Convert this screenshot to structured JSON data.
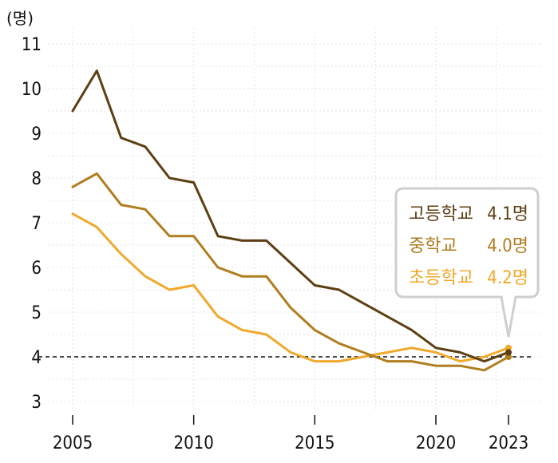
{
  "chart_data": {
    "type": "line",
    "ylabel": "(명)",
    "x": [
      2005,
      2006,
      2007,
      2008,
      2009,
      2010,
      2011,
      2012,
      2013,
      2014,
      2015,
      2016,
      2017,
      2018,
      2019,
      2020,
      2021,
      2022,
      2023
    ],
    "xticks": [
      "2005",
      "2010",
      "2015",
      "2020",
      "2023"
    ],
    "yticks": [
      "3",
      "4",
      "5",
      "6",
      "7",
      "8",
      "9",
      "10",
      "11"
    ],
    "ylim": [
      3,
      11
    ],
    "grid": true,
    "reference_line": 4,
    "series": [
      {
        "name": "고등학교",
        "color": "#5c3f12",
        "values": [
          9.5,
          10.4,
          8.9,
          8.7,
          8.0,
          7.9,
          6.7,
          6.6,
          6.6,
          6.1,
          5.6,
          5.5,
          5.2,
          4.9,
          4.6,
          4.2,
          4.1,
          3.9,
          4.1
        ],
        "latest_label": "4.1명"
      },
      {
        "name": "중학교",
        "color": "#b07d1f",
        "values": [
          7.8,
          8.1,
          7.4,
          7.3,
          6.7,
          6.7,
          6.0,
          5.8,
          5.8,
          5.1,
          4.6,
          4.3,
          4.1,
          3.9,
          3.9,
          3.8,
          3.8,
          3.7,
          4.0
        ],
        "latest_label": "4.0명"
      },
      {
        "name": "초등학교",
        "color": "#f0a92b",
        "values": [
          7.2,
          6.9,
          6.3,
          5.8,
          5.5,
          5.6,
          4.9,
          4.6,
          4.5,
          4.1,
          3.9,
          3.9,
          4.0,
          4.1,
          4.2,
          4.1,
          3.9,
          4.0,
          4.2
        ],
        "latest_label": "4.2명"
      }
    ],
    "legend": {
      "placement": "right"
    }
  }
}
